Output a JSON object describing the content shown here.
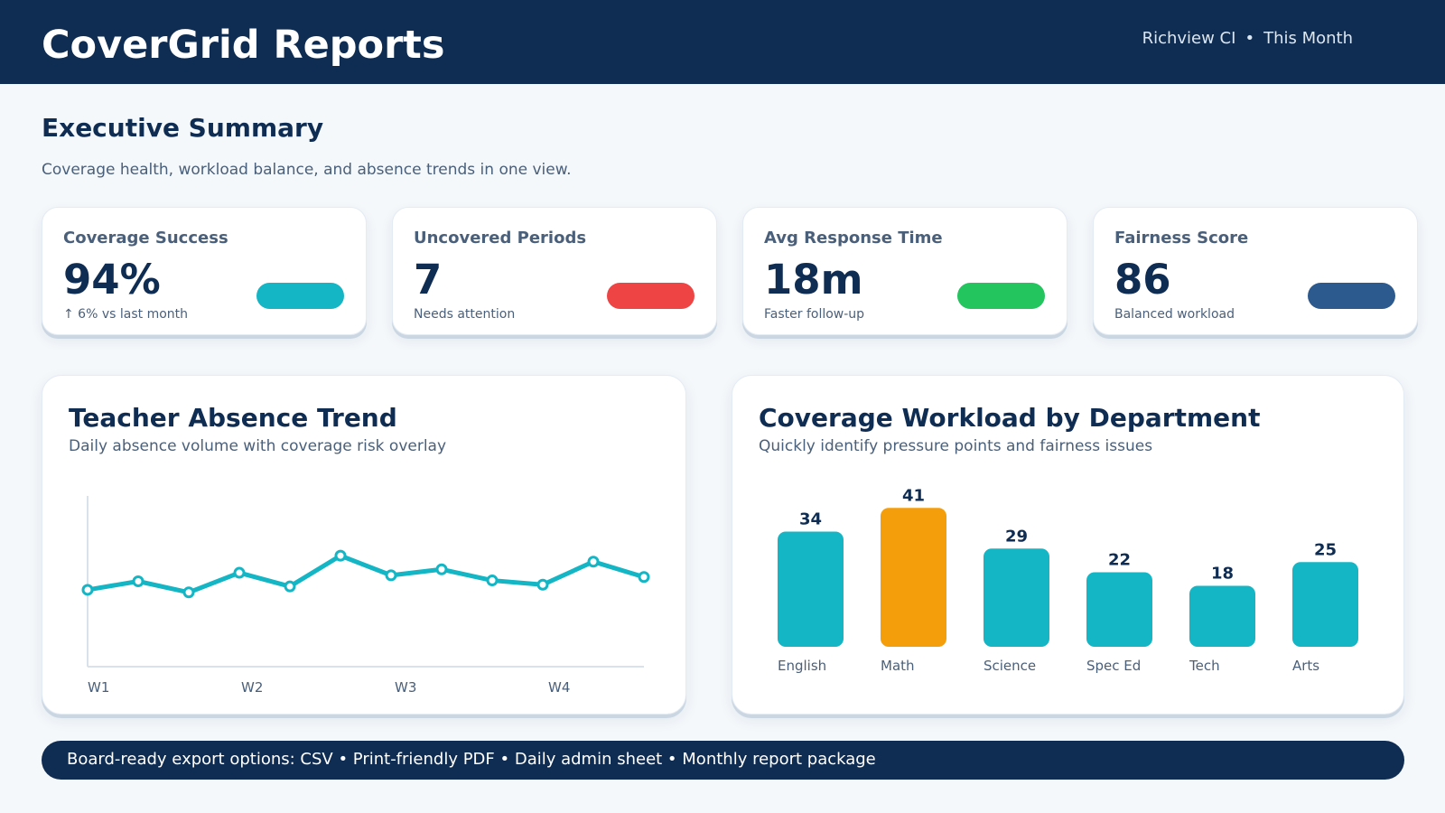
{
  "header": {
    "brand": "CoverGrid Reports",
    "school": "Richview CI",
    "separator": "•",
    "period": "This Month"
  },
  "summary": {
    "title": "Executive Summary",
    "subtitle": "Coverage health, workload balance, and absence trends in one view."
  },
  "kpis": [
    {
      "label": "Coverage Success",
      "value": "94%",
      "note": "↑ 6% vs last month",
      "color": "#14b5c4"
    },
    {
      "label": "Uncovered Periods",
      "value": "7",
      "note": "Needs attention",
      "color": "#ef4444"
    },
    {
      "label": "Avg Response Time",
      "value": "18m",
      "note": "Faster follow-up",
      "color": "#22c55e"
    },
    {
      "label": "Fairness Score",
      "value": "86",
      "note": "Balanced workload",
      "color": "#2d5a8e"
    }
  ],
  "absence_panel": {
    "title": "Teacher Absence Trend",
    "subtitle": "Daily absence volume with coverage risk overlay"
  },
  "workload_panel": {
    "title": "Coverage Workload by Department",
    "subtitle": "Quickly identify pressure points and fairness issues"
  },
  "chart_data": [
    {
      "type": "line",
      "x_tick_labels": [
        "W1",
        "W2",
        "W3",
        "W4"
      ],
      "series": [
        {
          "values": [
            9.0,
            10.0,
            8.7,
            11.0,
            9.4,
            13.0,
            10.7,
            11.4,
            10.1,
            9.6,
            12.3,
            10.5
          ]
        }
      ],
      "ylim": [
        0,
        20
      ],
      "color": "#14b5c4",
      "grid": false
    },
    {
      "type": "bar",
      "categories": [
        "English",
        "Math",
        "Science",
        "Spec Ed",
        "Tech",
        "Arts"
      ],
      "values": [
        34,
        41,
        29,
        22,
        18,
        25
      ],
      "highlight_index": 1,
      "color": "#14b5c4",
      "highlight_color": "#f59e0b",
      "ylim": [
        0,
        50
      ]
    }
  ],
  "footer": {
    "text": "Board-ready export options: CSV • Print-friendly PDF • Daily admin sheet • Monthly report package"
  }
}
